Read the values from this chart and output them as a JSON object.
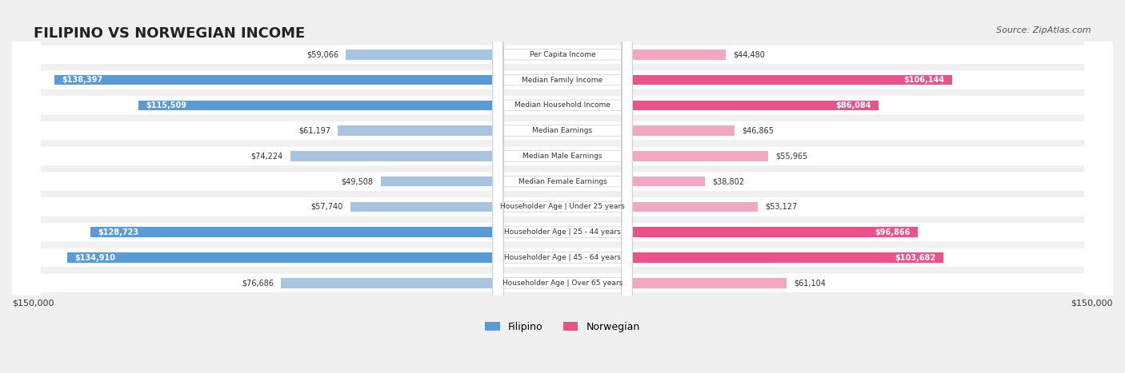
{
  "title": "FILIPINO VS NORWEGIAN INCOME",
  "source": "Source: ZipAtlas.com",
  "categories": [
    "Per Capita Income",
    "Median Family Income",
    "Median Household Income",
    "Median Earnings",
    "Median Male Earnings",
    "Median Female Earnings",
    "Householder Age | Under 25 years",
    "Householder Age | 25 - 44 years",
    "Householder Age | 45 - 64 years",
    "Householder Age | Over 65 years"
  ],
  "filipino_values": [
    59066,
    138397,
    115509,
    61197,
    74224,
    49508,
    57740,
    128723,
    134910,
    76686
  ],
  "norwegian_values": [
    44480,
    106144,
    86084,
    46865,
    55965,
    38802,
    53127,
    96866,
    103682,
    61104
  ],
  "max_value": 150000,
  "filipino_color_low": "#a8c4e0",
  "filipino_color_high": "#5b9bd5",
  "norwegian_color_low": "#f4a7c0",
  "norwegian_color_high": "#e8538a",
  "bg_color": "#f0f0f0",
  "row_bg_color": "#f8f8f8",
  "row_bg_alt": "#ebebeb",
  "label_color_dark": "#333333",
  "label_color_white": "#ffffff",
  "threshold_filipino": 100000,
  "threshold_norwegian": 80000,
  "xlabel_left": "$150,000",
  "xlabel_right": "$150,000",
  "legend_filipino": "Filipino",
  "legend_norwegian": "Norwegian"
}
